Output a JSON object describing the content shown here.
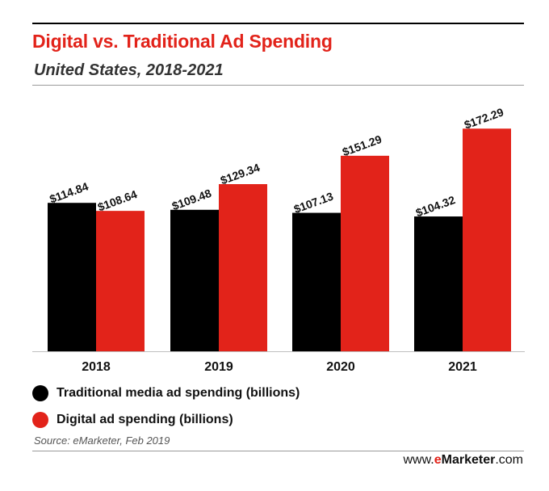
{
  "chart_data": {
    "type": "bar",
    "title": "Digital vs. Traditional Ad Spending",
    "subtitle": "United States, 2018-2021",
    "categories": [
      "2018",
      "2019",
      "2020",
      "2021"
    ],
    "series": [
      {
        "name": "Traditional media ad spending (billions)",
        "color": "#000000",
        "values": [
          114.84,
          109.48,
          107.13,
          104.32
        ],
        "labels": [
          "$114.84",
          "$109.48",
          "$107.13",
          "$104.32"
        ]
      },
      {
        "name": "Digital ad spending (billions)",
        "color": "#e2231a",
        "values": [
          108.64,
          129.34,
          151.29,
          172.29
        ],
        "labels": [
          "$108.64",
          "$129.34",
          "$151.29",
          "$172.29"
        ]
      }
    ],
    "xlabel": "",
    "ylabel": "",
    "ylim": [
      0,
      180
    ],
    "grid": false,
    "legend": "bottom-left"
  },
  "source": "Source: eMarketer, Feb 2019",
  "brand": {
    "prefix": "www.",
    "e": "e",
    "name": "Marketer",
    "suffix": ".com"
  }
}
